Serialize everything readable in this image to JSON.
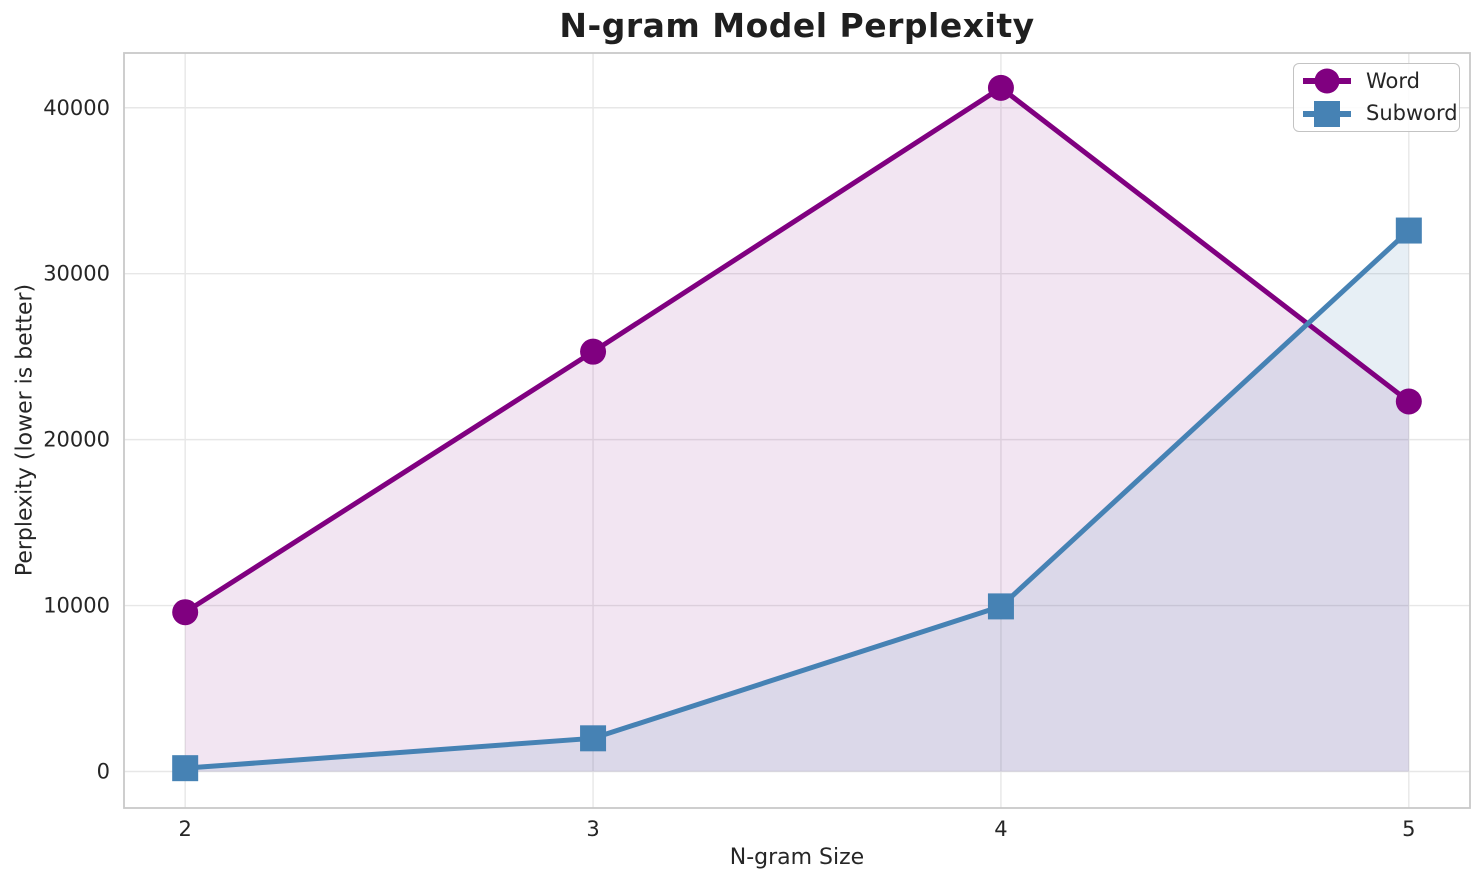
{
  "figure": {
    "background": "#ffffff",
    "text_color": "#262626",
    "grid_color": "#e7e7e7",
    "spine_color": "#c9c9c9"
  },
  "chart_data": {
    "type": "line",
    "title": "N-gram Model Perplexity",
    "xlabel": "N-gram Size",
    "ylabel": "Perplexity (lower is better)",
    "x": [
      2,
      3,
      4,
      5
    ],
    "series": [
      {
        "name": "Word",
        "marker": "circle",
        "color": "#800080",
        "fill_alpha": 0.1,
        "values": [
          9600,
          25300,
          41200,
          22300
        ]
      },
      {
        "name": "Subword",
        "marker": "square",
        "color": "#4682B4",
        "fill_alpha": 0.13,
        "values": [
          200,
          2000,
          9950,
          32600
        ]
      }
    ],
    "x_ticks": [
      "2",
      "3",
      "4",
      "5"
    ],
    "x_tick_values": [
      2,
      3,
      4,
      5
    ],
    "y_ticks": [
      "0",
      "10000",
      "20000",
      "30000",
      "40000"
    ],
    "y_tick_values": [
      0,
      10000,
      20000,
      30000,
      40000
    ],
    "xlim": [
      1.85,
      5.15
    ],
    "ylim": [
      -2200,
      43300
    ],
    "grid": true,
    "area_fill": true,
    "fill_baseline": 0,
    "legend_position": "upper right"
  }
}
